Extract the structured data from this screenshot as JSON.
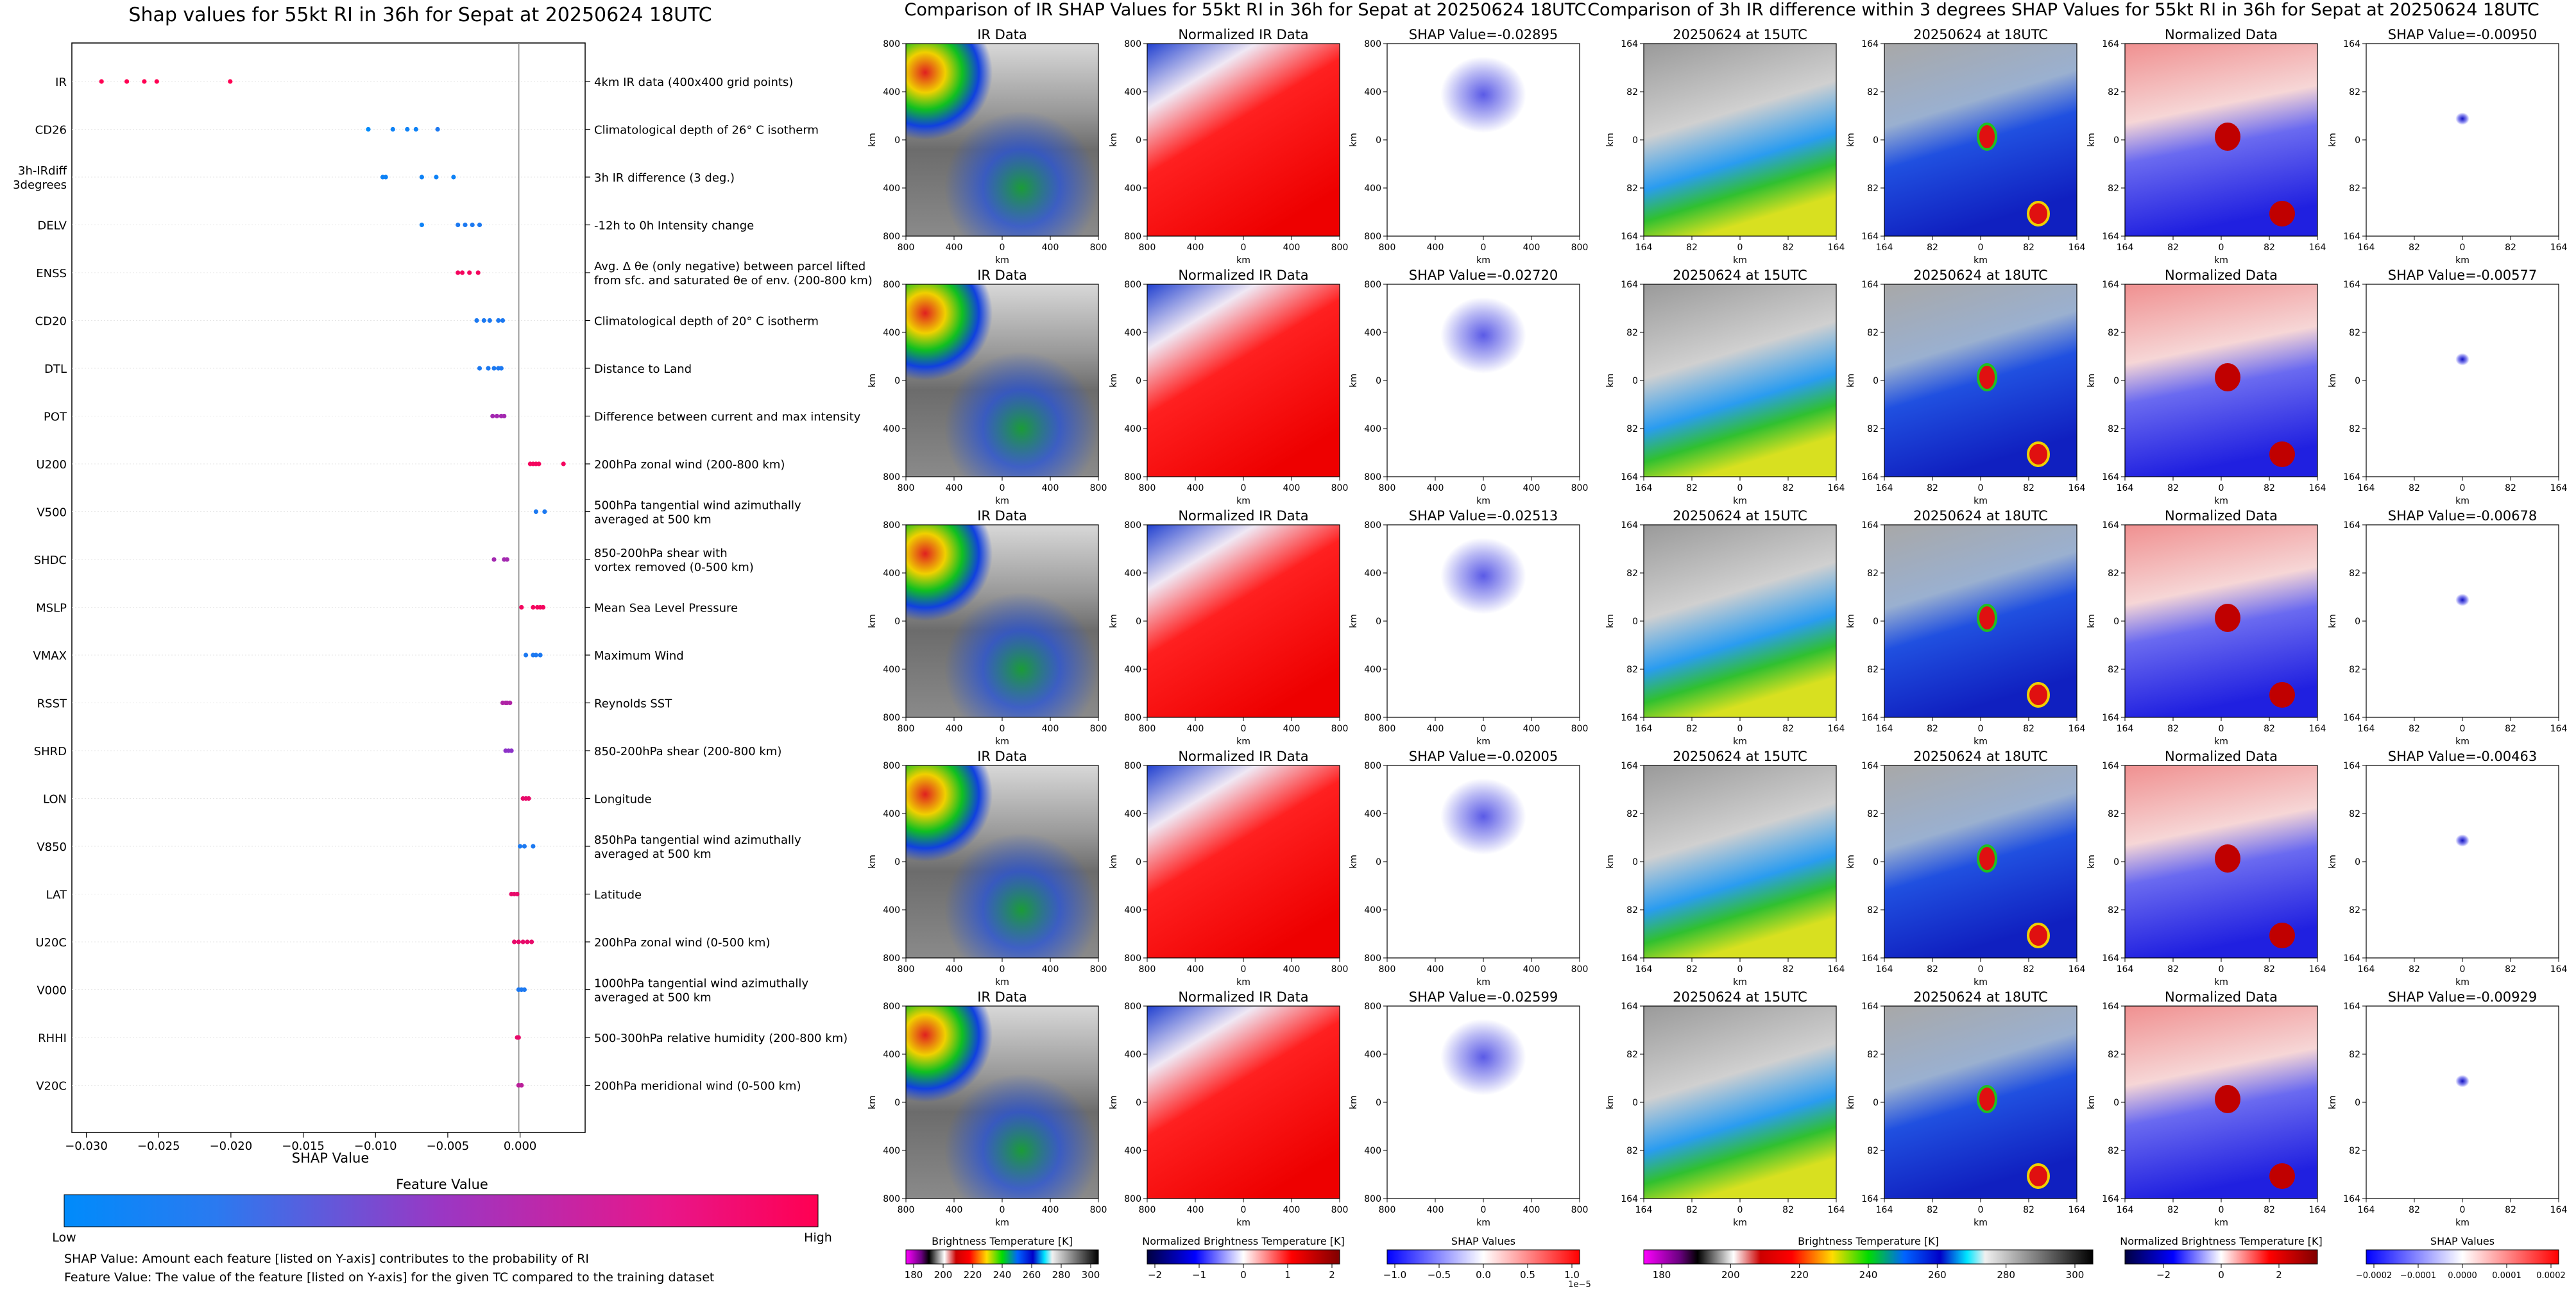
{
  "left_panel": {
    "title": "Shap values for 55kt RI in 36h for Sepat at 20250624 18UTC",
    "xlabel": "SHAP Value",
    "feature_value_title": "Feature Value",
    "low_label": "Low",
    "high_label": "High",
    "note_shap": "SHAP Value: Amount each feature [listed on Y-axis] contributes to the probability of RI",
    "note_feature": "Feature Value: The value of the feature [listed on Y-axis] for the given TC compared to the training dataset"
  },
  "mid_title": "Comparison of IR SHAP Values for 55kt RI in 36h for Sepat at 20250624 18UTC",
  "right_title": "Comparison of 3h IR difference within 3 degrees SHAP Values for 55kt RI in 36h for Sepat at 20250624 18UTC",
  "columns": {
    "ir": "IR Data",
    "norm_ir": "Normalized IR Data",
    "t15": "20250624 at 15UTC",
    "t18": "20250624 at 18UTC",
    "norm": "Normalized Data"
  },
  "axis_km": "km",
  "shap_ir_titles": [
    "SHAP Value=-0.02895",
    "SHAP Value=-0.02720",
    "SHAP Value=-0.02513",
    "SHAP Value=-0.02005",
    "SHAP Value=-0.02599"
  ],
  "shap_diff_titles": [
    "SHAP Value=-0.00950",
    "SHAP Value=-0.00577",
    "SHAP Value=-0.00678",
    "SHAP Value=-0.00463",
    "SHAP Value=-0.00929"
  ],
  "ticks_ir": [
    "800",
    "400",
    "0",
    "400",
    "800"
  ],
  "ticks_diff": [
    "164",
    "82",
    "0",
    "82",
    "164"
  ],
  "colorbars": {
    "bt": {
      "label": "Brightness Temperature [K]",
      "ticks": [
        "180",
        "200",
        "220",
        "240",
        "260",
        "280",
        "300"
      ]
    },
    "norm_bt": {
      "label": "Normalized Brightness Temperature [K]",
      "ticks": [
        "−2",
        "−1",
        "0",
        "1",
        "2"
      ]
    },
    "shap": {
      "label": "SHAP Values",
      "ticks": [
        "−1.0",
        "−0.5",
        "0.0",
        "0.5",
        "1.0"
      ],
      "offset": "1e−5"
    },
    "bt2": {
      "label": "Brightness Temperature [K]",
      "ticks": [
        "180",
        "200",
        "220",
        "240",
        "260",
        "280",
        "300"
      ]
    },
    "norm_bt2": {
      "label": "Normalized Brightness Temperature [K]",
      "ticks": [
        "−2",
        "0",
        "2"
      ]
    },
    "shap2": {
      "label": "SHAP Values",
      "ticks": [
        "−0.0002",
        "−0.0001",
        "0.0000",
        "0.0001",
        "0.0002"
      ]
    }
  },
  "colors": {
    "low": "#1e88e5",
    "high": "#ff0d57"
  },
  "chart_data": {
    "type": "scatter",
    "title": "Shap values for 55kt RI in 36h for Sepat at 20250624 18UTC",
    "xlabel": "SHAP Value",
    "xlim": [
      -0.031,
      0.0045
    ],
    "xticks": [
      "−0.030",
      "−0.025",
      "−0.020",
      "−0.015",
      "−0.010",
      "−0.005",
      "0.000"
    ],
    "grid": false,
    "features": [
      {
        "name": "IR",
        "desc": "4km IR data (400x400 grid points)",
        "points": [
          [
            -0.02895,
            1.0
          ],
          [
            -0.0272,
            1.0
          ],
          [
            -0.02513,
            1.0
          ],
          [
            -0.02005,
            1.0
          ],
          [
            -0.02599,
            1.0
          ]
        ]
      },
      {
        "name": "CD26",
        "desc": "Climatological depth of 26° C isotherm",
        "points": [
          [
            -0.0105,
            0.0
          ],
          [
            -0.0088,
            0.05
          ],
          [
            -0.0078,
            0.05
          ],
          [
            -0.0072,
            0.05
          ],
          [
            -0.0057,
            0.1
          ]
        ]
      },
      {
        "name": "3h-IRdiff\n3degrees",
        "desc": "3h IR difference (3 deg.)",
        "points": [
          [
            -0.0095,
            0.05
          ],
          [
            -0.00929,
            0.05
          ],
          [
            -0.0068,
            0.05
          ],
          [
            -0.0058,
            0.05
          ],
          [
            -0.0046,
            0.05
          ]
        ]
      },
      {
        "name": "DELV",
        "desc": "-12h to 0h Intensity change",
        "points": [
          [
            -0.0068,
            0.05
          ],
          [
            -0.0043,
            0.1
          ],
          [
            -0.0038,
            0.1
          ],
          [
            -0.0033,
            0.1
          ],
          [
            -0.0028,
            0.1
          ]
        ]
      },
      {
        "name": "ENSS",
        "desc": "Avg. Δ θe (only negative) between parcel lifted\nfrom sfc. and saturated θe of env. (200-800 km)",
        "points": [
          [
            -0.0043,
            0.95
          ],
          [
            -0.004,
            0.95
          ],
          [
            -0.0035,
            0.95
          ],
          [
            -0.0029,
            0.95
          ]
        ]
      },
      {
        "name": "CD20",
        "desc": "Climatological depth of 20° C isotherm",
        "points": [
          [
            -0.003,
            0.1
          ],
          [
            -0.0025,
            0.1
          ],
          [
            -0.0021,
            0.1
          ],
          [
            -0.0015,
            0.1
          ],
          [
            -0.0012,
            0.1
          ]
        ]
      },
      {
        "name": "DTL",
        "desc": "Distance to Land",
        "points": [
          [
            -0.0028,
            0.1
          ],
          [
            -0.0022,
            0.1
          ],
          [
            -0.0018,
            0.1
          ],
          [
            -0.0015,
            0.1
          ],
          [
            -0.0013,
            0.1
          ]
        ]
      },
      {
        "name": "POT",
        "desc": "Difference between current and max intensity",
        "points": [
          [
            -0.0019,
            0.6
          ],
          [
            -0.0016,
            0.6
          ],
          [
            -0.0013,
            0.6
          ],
          [
            -0.0011,
            0.6
          ]
        ]
      },
      {
        "name": "U200",
        "desc": "200hPa zonal wind (200-800 km)",
        "points": [
          [
            0.0007,
            0.95
          ],
          [
            0.0009,
            0.95
          ],
          [
            0.0011,
            0.95
          ],
          [
            0.0013,
            0.95
          ],
          [
            0.003,
            0.95
          ]
        ]
      },
      {
        "name": "V500",
        "desc": "500hPa tangential wind azimuthally\naveraged at 500 km",
        "points": [
          [
            0.0011,
            0.1
          ],
          [
            0.0017,
            0.1
          ]
        ]
      },
      {
        "name": "SHDC",
        "desc": "850-200hPa shear with\nvortex removed (0-500 km)",
        "points": [
          [
            -0.0018,
            0.6
          ],
          [
            -0.0011,
            0.6
          ],
          [
            -0.0009,
            0.6
          ]
        ]
      },
      {
        "name": "MSLP",
        "desc": "Mean Sea Level Pressure",
        "points": [
          [
            0.0001,
            0.95
          ],
          [
            0.0009,
            0.95
          ],
          [
            0.0012,
            0.95
          ],
          [
            0.0014,
            0.95
          ],
          [
            0.0016,
            0.95
          ]
        ]
      },
      {
        "name": "VMAX",
        "desc": "Maximum Wind",
        "points": [
          [
            0.0004,
            0.1
          ],
          [
            0.0009,
            0.1
          ],
          [
            0.0011,
            0.1
          ],
          [
            0.0014,
            0.1
          ]
        ]
      },
      {
        "name": "RSST",
        "desc": "Reynolds SST",
        "points": [
          [
            -0.0012,
            0.65
          ],
          [
            -0.001,
            0.65
          ],
          [
            -0.0009,
            0.65
          ],
          [
            -0.0007,
            0.65
          ]
        ]
      },
      {
        "name": "SHRD",
        "desc": "850-200hPa shear (200-800 km)",
        "points": [
          [
            -0.001,
            0.5
          ],
          [
            -0.0008,
            0.5
          ],
          [
            -0.0006,
            0.5
          ]
        ]
      },
      {
        "name": "LON",
        "desc": "Longitude",
        "points": [
          [
            0.0002,
            0.9
          ],
          [
            0.0004,
            0.9
          ],
          [
            0.0006,
            0.9
          ]
        ]
      },
      {
        "name": "V850",
        "desc": "850hPa tangential wind azimuthally\naveraged at 500 km",
        "points": [
          [
            0.0,
            0.1
          ],
          [
            0.0003,
            0.1
          ],
          [
            0.0009,
            0.1
          ]
        ]
      },
      {
        "name": "LAT",
        "desc": "Latitude",
        "points": [
          [
            -0.0006,
            0.9
          ],
          [
            -0.0004,
            0.9
          ],
          [
            -0.0002,
            0.9
          ]
        ]
      },
      {
        "name": "U20C",
        "desc": "200hPa zonal wind (0-500 km)",
        "points": [
          [
            -0.0004,
            0.9
          ],
          [
            -0.0001,
            0.9
          ],
          [
            0.0002,
            0.9
          ],
          [
            0.0005,
            0.9
          ],
          [
            0.0008,
            0.9
          ]
        ]
      },
      {
        "name": "V000",
        "desc": "1000hPa tangential wind azimuthally\naveraged at 500 km",
        "points": [
          [
            -0.0001,
            0.1
          ],
          [
            0.0001,
            0.1
          ],
          [
            0.0003,
            0.1
          ]
        ]
      },
      {
        "name": "RHHI",
        "desc": "500-300hPa relative humidity (200-800 km)",
        "points": [
          [
            -0.0002,
            0.9
          ],
          [
            -0.0001,
            0.9
          ]
        ]
      },
      {
        "name": "V20C",
        "desc": "200hPa meridional wind (0-500 km)",
        "points": [
          [
            -0.0001,
            0.7
          ],
          [
            0.0001,
            0.7
          ]
        ]
      }
    ]
  }
}
